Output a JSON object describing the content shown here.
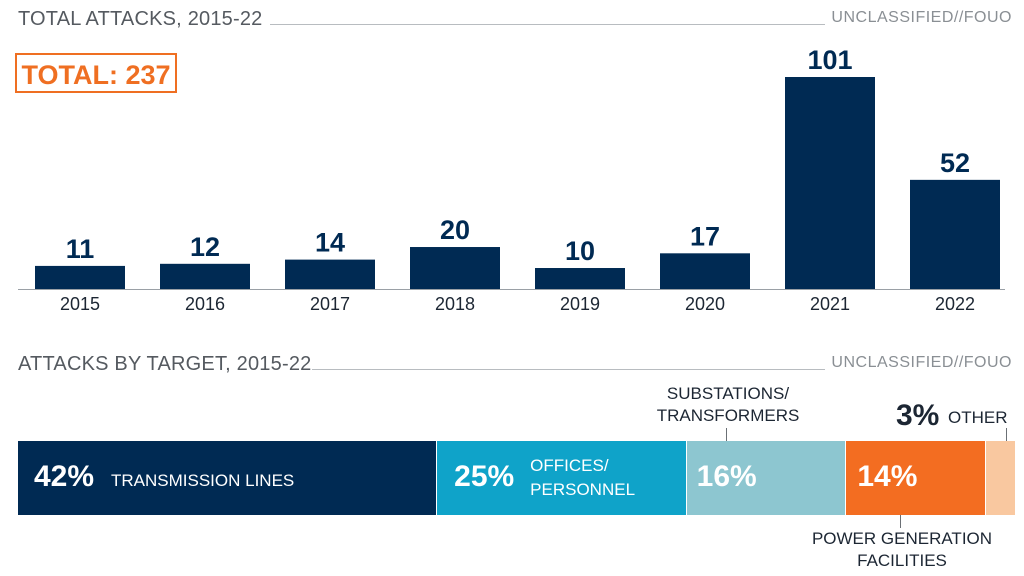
{
  "top": {
    "title": "TOTAL ATTACKS, 2015-22",
    "classification": "UNCLASSIFIED//FOUO",
    "total_label": "TOTAL: 237"
  },
  "bottom": {
    "title": "ATTACKS BY TARGET, 2015-22",
    "classification": "UNCLASSIFIED//FOUO",
    "segments": [
      {
        "pct_label": "42%",
        "label": "TRANSMISSION LINES"
      },
      {
        "pct_label": "25%",
        "label_line1": "OFFICES/",
        "label_line2": "PERSONNEL"
      },
      {
        "pct_label": "16%",
        "label_line1": "SUBSTATIONS/",
        "label_line2": "TRANSFORMERS"
      },
      {
        "pct_label": "14%",
        "label_line1": "POWER GENERATION",
        "label_line2": "FACILITIES"
      },
      {
        "pct_label": "3%",
        "label": "OTHER"
      }
    ]
  },
  "colors": {
    "navy": "#002a53",
    "blue": "#0fa3c9",
    "light_teal": "#8dc6d0",
    "orange": "#f36d21",
    "peach": "#f9c8a0"
  },
  "chart_data": [
    {
      "type": "bar",
      "title": "TOTAL ATTACKS, 2015-22",
      "categories": [
        "2015",
        "2016",
        "2017",
        "2018",
        "2019",
        "2020",
        "2021",
        "2022"
      ],
      "values": [
        11,
        12,
        14,
        20,
        10,
        17,
        101,
        52
      ],
      "ylim": [
        0,
        110
      ],
      "grid": false,
      "color": "#002a53"
    },
    {
      "type": "bar",
      "orientation": "stacked-horizontal",
      "title": "ATTACKS BY TARGET, 2015-22",
      "categories": [
        "TRANSMISSION LINES",
        "OFFICES/PERSONNEL",
        "SUBSTATIONS/TRANSFORMERS",
        "POWER GENERATION FACILITIES",
        "OTHER"
      ],
      "values": [
        42,
        25,
        16,
        14,
        3
      ],
      "unit": "%"
    }
  ]
}
